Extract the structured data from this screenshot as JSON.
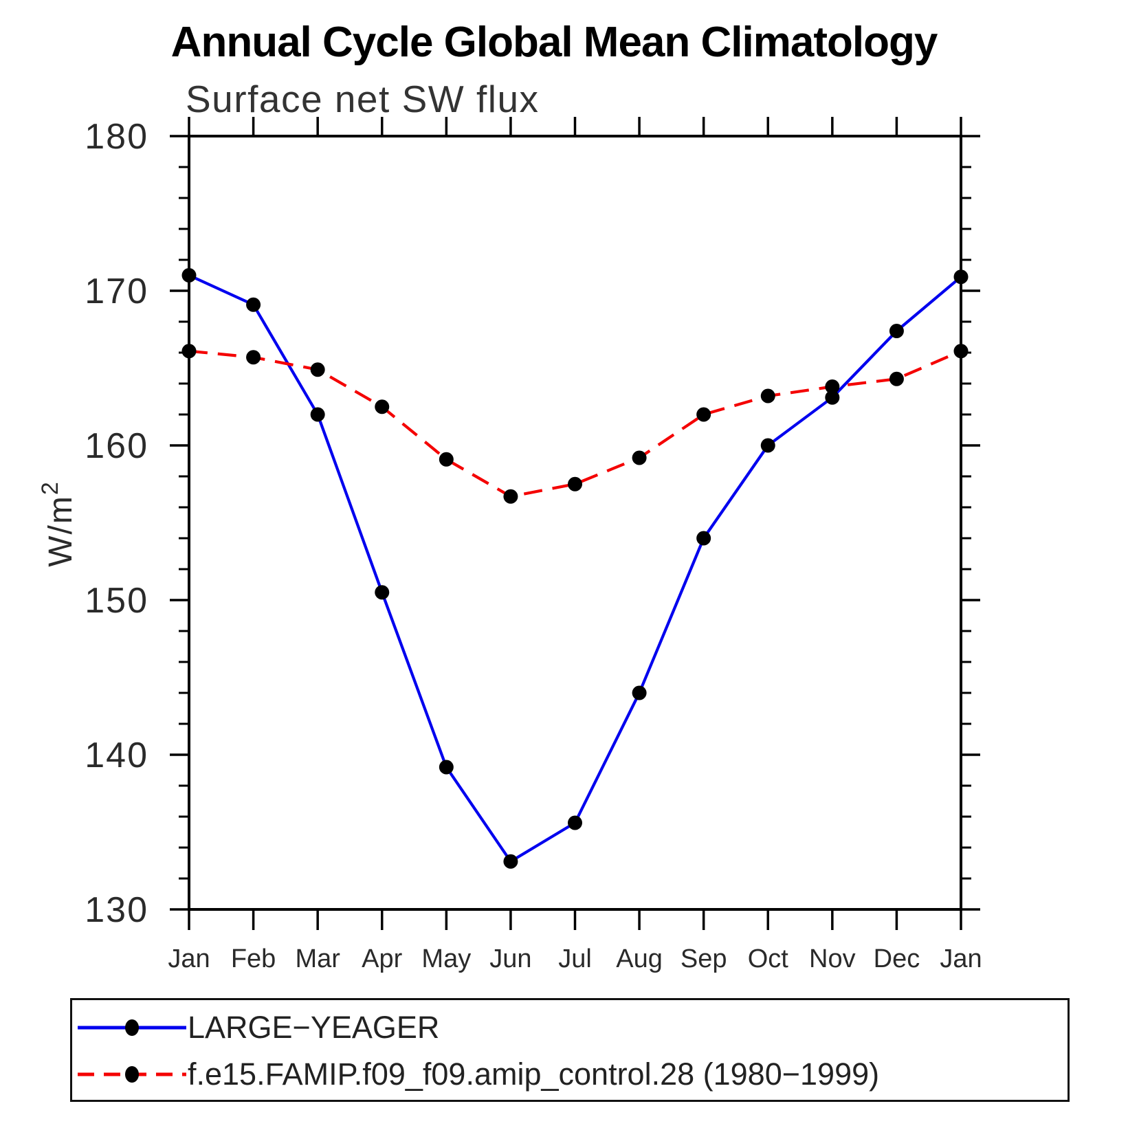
{
  "page": {
    "background": "#ffffff"
  },
  "chart_data": {
    "type": "line",
    "title": "Annual Cycle Global Mean Climatology",
    "subtitle": "Surface net SW flux",
    "ylabel_base": "W/m",
    "ylabel_exponent": "2",
    "categories": [
      "Jan",
      "Feb",
      "Mar",
      "Apr",
      "May",
      "Jun",
      "Jul",
      "Aug",
      "Sep",
      "Oct",
      "Nov",
      "Dec",
      "Jan"
    ],
    "ylim": [
      130,
      180
    ],
    "ytick_major_step": 10,
    "ytick_minor_step": 2,
    "ytick_labels": [
      "130",
      "140",
      "150",
      "160",
      "170",
      "180"
    ],
    "grid": false,
    "legend_position": "bottom",
    "frame_color": "#000000",
    "tick_label_color": "#2a2a2a",
    "marker_color": "#000000",
    "series": [
      {
        "name": "LARGE−YEAGER",
        "color": "#0000ee",
        "style": "solid",
        "marker": "filled-circle",
        "values": [
          171.0,
          169.1,
          162.0,
          150.5,
          139.2,
          133.1,
          135.6,
          144.0,
          154.0,
          160.0,
          163.1,
          167.4,
          170.9
        ]
      },
      {
        "name": "f.e15.FAMIP.f09_f09.amip_control.28 (1980−1999)",
        "color": "#f40000",
        "style": "dashed",
        "marker": "filled-circle",
        "values": [
          166.1,
          165.7,
          164.9,
          162.5,
          159.1,
          156.7,
          157.5,
          159.2,
          162.0,
          163.2,
          163.8,
          164.3,
          166.1
        ]
      }
    ]
  }
}
